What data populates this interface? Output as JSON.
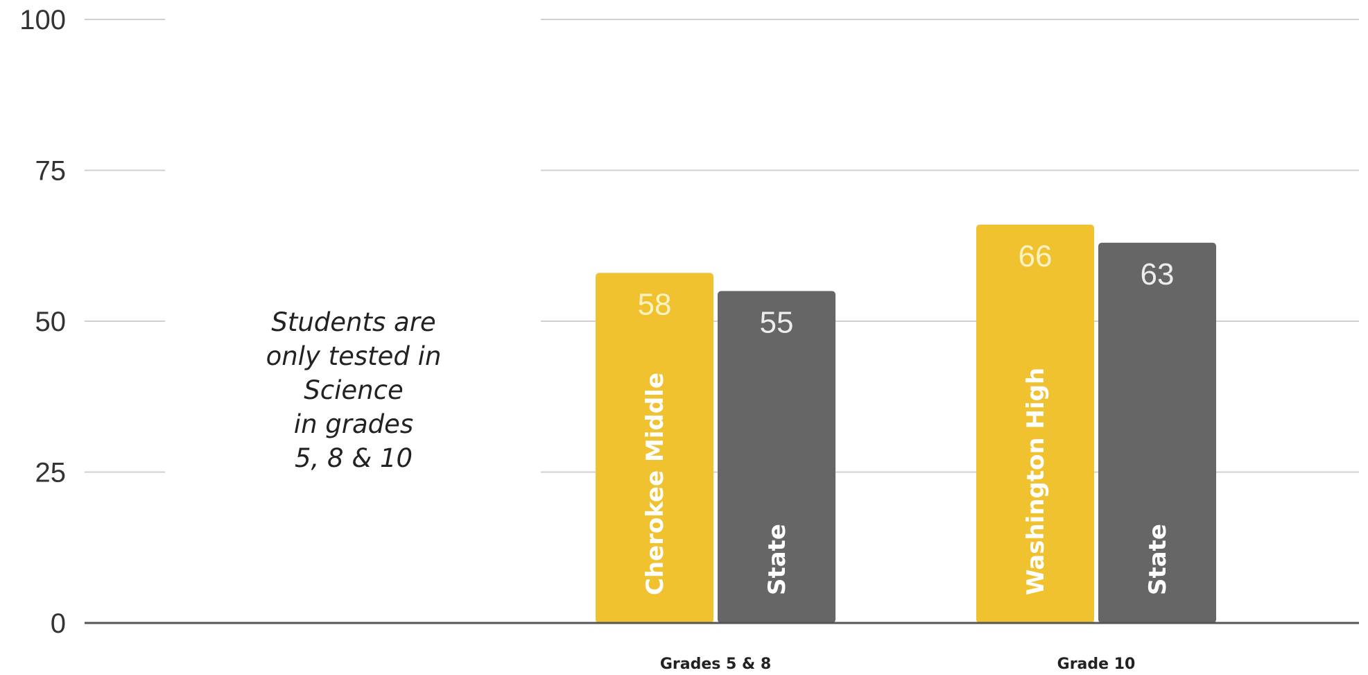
{
  "chart_data": {
    "type": "bar",
    "categories": [
      "Grades 5 & 8",
      "Grade 10"
    ],
    "series": [
      {
        "values": [
          58,
          66
        ],
        "labels": [
          "Cherokee Middle",
          "Washington High"
        ],
        "color": "#F0C230",
        "value_color": "#FFF3C4"
      },
      {
        "values": [
          55,
          63
        ],
        "labels": [
          "State",
          "State"
        ],
        "color": "#666666",
        "value_color": "#EDEDED"
      }
    ],
    "ylim": [
      0,
      100
    ],
    "yticks": [
      0,
      25,
      50,
      75,
      100
    ],
    "grid": true,
    "annotation": [
      "Students are",
      "only tested in",
      "Science",
      "in grades",
      "5, 8 & 10"
    ]
  }
}
